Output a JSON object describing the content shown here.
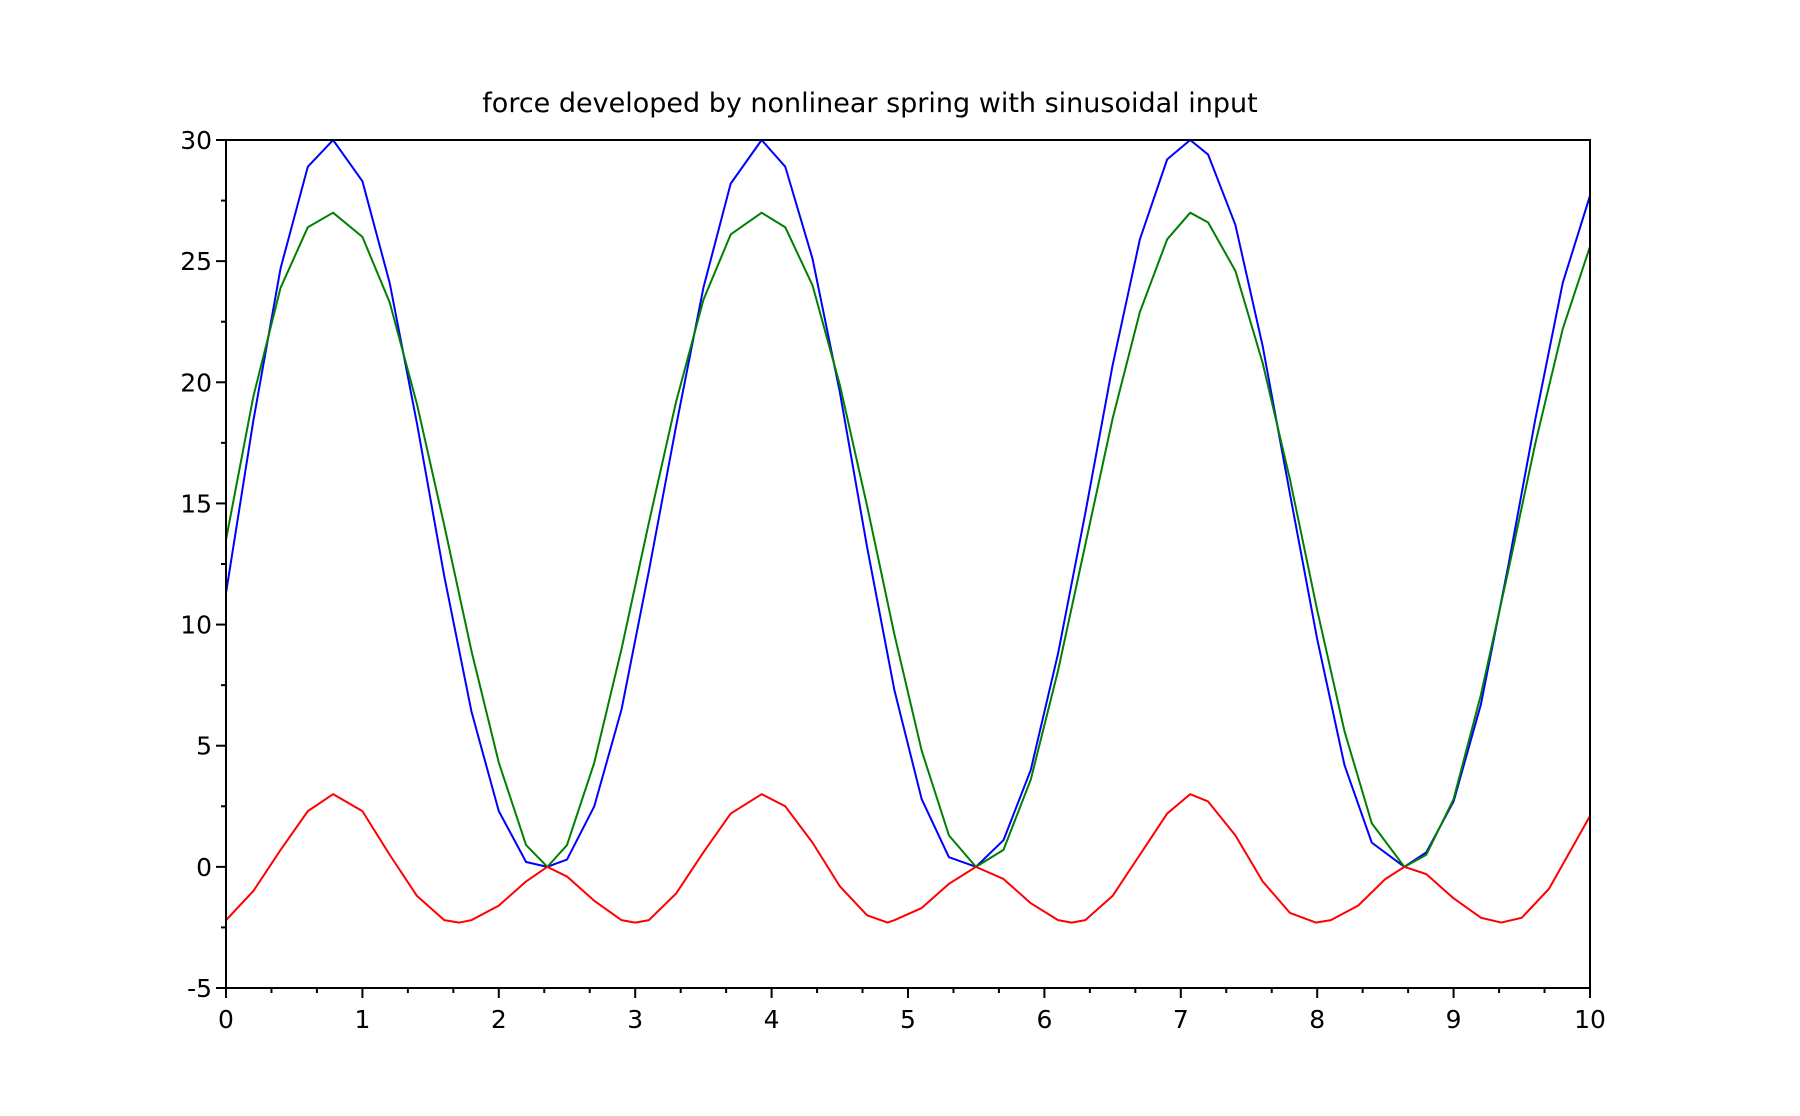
{
  "chart_data": {
    "type": "line",
    "title": "force developed by nonlinear spring with sinusoidal input",
    "xlabel": "",
    "ylabel": "",
    "xlim": [
      0,
      10
    ],
    "ylim": [
      -5,
      30
    ],
    "x_ticks": [
      0,
      1,
      2,
      3,
      4,
      5,
      6,
      7,
      8,
      9,
      10
    ],
    "y_ticks": [
      -5,
      0,
      5,
      10,
      15,
      20,
      25,
      30
    ],
    "x_tick_labels": [
      "0",
      "1",
      "2",
      "3",
      "4",
      "5",
      "6",
      "7",
      "8",
      "9",
      "10"
    ],
    "y_tick_labels": [
      "-5",
      "0",
      "5",
      "10",
      "15",
      "20",
      "25",
      "30"
    ],
    "x_minor_ticks_per_major": 2,
    "y_minor_ticks_per_major": 1,
    "grid": false,
    "legend": "none",
    "series": [
      {
        "color": "#0000ff",
        "x": [
          0,
          0.2,
          0.4,
          0.6,
          0.785,
          1.0,
          1.2,
          1.4,
          1.6,
          1.8,
          2.0,
          2.2,
          2.356,
          2.5,
          2.7,
          2.9,
          3.1,
          3.3,
          3.5,
          3.7,
          3.927,
          4.1,
          4.3,
          4.5,
          4.7,
          4.9,
          5.1,
          5.3,
          5.498,
          5.7,
          5.9,
          6.1,
          6.3,
          6.5,
          6.7,
          6.9,
          7.069,
          7.2,
          7.4,
          7.6,
          7.8,
          8.0,
          8.2,
          8.4,
          8.639,
          8.8,
          9.0,
          9.2,
          9.4,
          9.6,
          9.8,
          10.0
        ],
        "y": [
          11.3,
          18.4,
          24.7,
          28.9,
          30.0,
          28.3,
          24.1,
          18.3,
          12.0,
          6.4,
          2.3,
          0.2,
          0.0,
          0.3,
          2.5,
          6.5,
          12.2,
          18.2,
          23.9,
          28.2,
          30.0,
          28.9,
          25.1,
          19.6,
          13.2,
          7.3,
          2.8,
          0.4,
          0.0,
          1.1,
          4.0,
          8.8,
          14.6,
          20.7,
          25.9,
          29.2,
          30.0,
          29.4,
          26.5,
          21.5,
          15.4,
          9.4,
          4.2,
          1.0,
          0.0,
          0.6,
          2.7,
          6.7,
          12.4,
          18.5,
          24.1,
          27.7
        ]
      },
      {
        "color": "#008000",
        "x": [
          0,
          0.2,
          0.4,
          0.6,
          0.785,
          1.0,
          1.2,
          1.4,
          1.6,
          1.8,
          2.0,
          2.2,
          2.356,
          2.5,
          2.7,
          2.9,
          3.1,
          3.3,
          3.5,
          3.7,
          3.927,
          4.1,
          4.3,
          4.5,
          4.7,
          4.9,
          5.1,
          5.3,
          5.498,
          5.7,
          5.9,
          6.1,
          6.3,
          6.5,
          6.7,
          6.9,
          7.069,
          7.2,
          7.4,
          7.6,
          7.8,
          8.0,
          8.2,
          8.4,
          8.639,
          8.8,
          9.0,
          9.2,
          9.4,
          9.6,
          9.8,
          10.0
        ],
        "y": [
          13.5,
          19.4,
          23.9,
          26.4,
          27.0,
          26.0,
          23.3,
          19.1,
          14.1,
          8.9,
          4.3,
          0.9,
          0.0,
          0.9,
          4.3,
          9.0,
          14.2,
          19.2,
          23.4,
          26.1,
          27.0,
          26.4,
          24.0,
          19.9,
          14.9,
          9.6,
          4.8,
          1.3,
          0.0,
          0.7,
          3.6,
          8.1,
          13.3,
          18.5,
          22.9,
          25.9,
          27.0,
          26.6,
          24.6,
          20.8,
          16.0,
          10.6,
          5.6,
          1.8,
          0.0,
          0.5,
          2.8,
          7.1,
          12.2,
          17.5,
          22.2,
          25.6
        ]
      },
      {
        "color": "#ff0000",
        "x": [
          0,
          0.2,
          0.4,
          0.6,
          0.785,
          1.0,
          1.2,
          1.4,
          1.6,
          1.71,
          1.8,
          2.0,
          2.2,
          2.356,
          2.5,
          2.7,
          2.9,
          3.0,
          3.1,
          3.3,
          3.5,
          3.7,
          3.927,
          4.1,
          4.3,
          4.5,
          4.7,
          4.85,
          4.9,
          5.1,
          5.3,
          5.498,
          5.7,
          5.9,
          6.1,
          6.2,
          6.3,
          6.5,
          6.7,
          6.9,
          7.069,
          7.2,
          7.4,
          7.6,
          7.8,
          7.99,
          8.1,
          8.3,
          8.5,
          8.639,
          8.8,
          9.0,
          9.2,
          9.35,
          9.5,
          9.7,
          9.9,
          10.0
        ],
        "y": [
          -2.2,
          -1.0,
          0.7,
          2.3,
          3.0,
          2.3,
          0.5,
          -1.2,
          -2.2,
          -2.3,
          -2.2,
          -1.6,
          -0.6,
          0.0,
          -0.4,
          -1.4,
          -2.2,
          -2.3,
          -2.2,
          -1.1,
          0.6,
          2.2,
          3.0,
          2.5,
          1.0,
          -0.8,
          -2.0,
          -2.3,
          -2.2,
          -1.7,
          -0.7,
          0.0,
          -0.5,
          -1.5,
          -2.2,
          -2.3,
          -2.2,
          -1.2,
          0.5,
          2.2,
          3.0,
          2.7,
          1.3,
          -0.6,
          -1.9,
          -2.3,
          -2.2,
          -1.6,
          -0.5,
          0.0,
          -0.3,
          -1.3,
          -2.1,
          -2.3,
          -2.1,
          -0.9,
          1.1,
          2.1
        ]
      }
    ]
  }
}
